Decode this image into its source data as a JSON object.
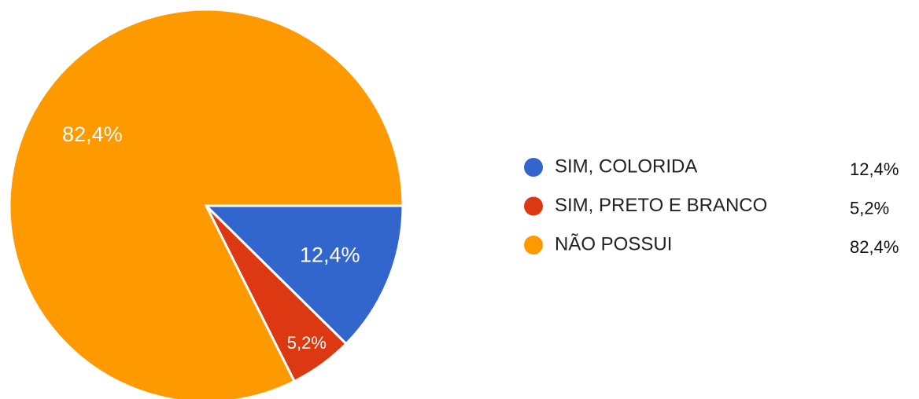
{
  "chart_data": {
    "type": "pie",
    "categories": [
      "SIM, COLORIDA",
      "SIM, PRETO E BRANCO",
      "NÃO POSSUI"
    ],
    "values": [
      12.4,
      5.2,
      82.4
    ],
    "value_labels": [
      "12,4%",
      "5,2%",
      "82,4%"
    ],
    "colors": [
      "#3366cc",
      "#dc3912",
      "#ff9900"
    ],
    "legend": "right"
  }
}
